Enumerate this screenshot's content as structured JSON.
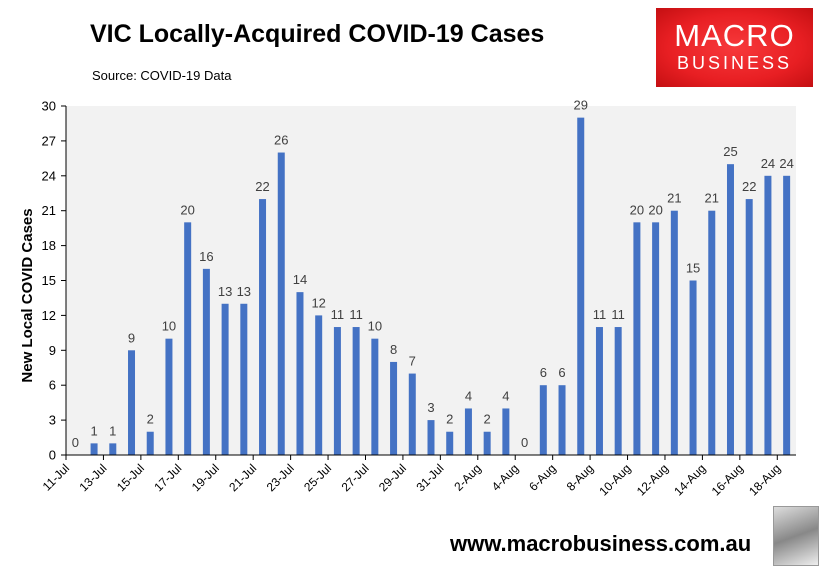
{
  "chart_data": {
    "type": "bar",
    "title": "VIC Locally-Acquired COVID-19 Cases",
    "subtitle": "Source: COVID-19 Data",
    "xlabel": "",
    "ylabel": "New Local COVID Cases",
    "ylim": [
      0,
      30
    ],
    "yticks": [
      0,
      3,
      6,
      9,
      12,
      15,
      18,
      21,
      24,
      27,
      30
    ],
    "grid": false,
    "bar_color": "#4472c4",
    "plot_background": "#f2f2f2",
    "categories": [
      "11-Jul",
      "12-Jul",
      "13-Jul",
      "14-Jul",
      "15-Jul",
      "16-Jul",
      "17-Jul",
      "18-Jul",
      "19-Jul",
      "20-Jul",
      "21-Jul",
      "22-Jul",
      "23-Jul",
      "24-Jul",
      "25-Jul",
      "26-Jul",
      "27-Jul",
      "28-Jul",
      "29-Jul",
      "30-Jul",
      "31-Jul",
      "1-Aug",
      "2-Aug",
      "3-Aug",
      "4-Aug",
      "5-Aug",
      "6-Aug",
      "7-Aug",
      "8-Aug",
      "9-Aug",
      "10-Aug",
      "11-Aug",
      "12-Aug",
      "13-Aug",
      "14-Aug",
      "15-Aug",
      "16-Aug",
      "17-Aug",
      "18-Aug"
    ],
    "tick_labels": [
      "11-Jul",
      "13-Jul",
      "15-Jul",
      "17-Jul",
      "19-Jul",
      "21-Jul",
      "23-Jul",
      "25-Jul",
      "27-Jul",
      "29-Jul",
      "31-Jul",
      "2-Aug",
      "4-Aug",
      "6-Aug",
      "8-Aug",
      "10-Aug",
      "12-Aug",
      "14-Aug",
      "16-Aug",
      "18-Aug"
    ],
    "values": [
      0,
      1,
      1,
      9,
      2,
      10,
      20,
      16,
      13,
      13,
      22,
      26,
      14,
      12,
      11,
      11,
      10,
      8,
      7,
      3,
      2,
      4,
      2,
      4,
      0,
      6,
      6,
      29,
      11,
      11,
      20,
      20,
      21,
      15,
      21,
      25,
      22,
      24,
      24
    ]
  },
  "logo": {
    "line1": "MACRO",
    "line2": "BUSINESS",
    "color": "#e81f23"
  },
  "website": "www.macrobusiness.com.au"
}
